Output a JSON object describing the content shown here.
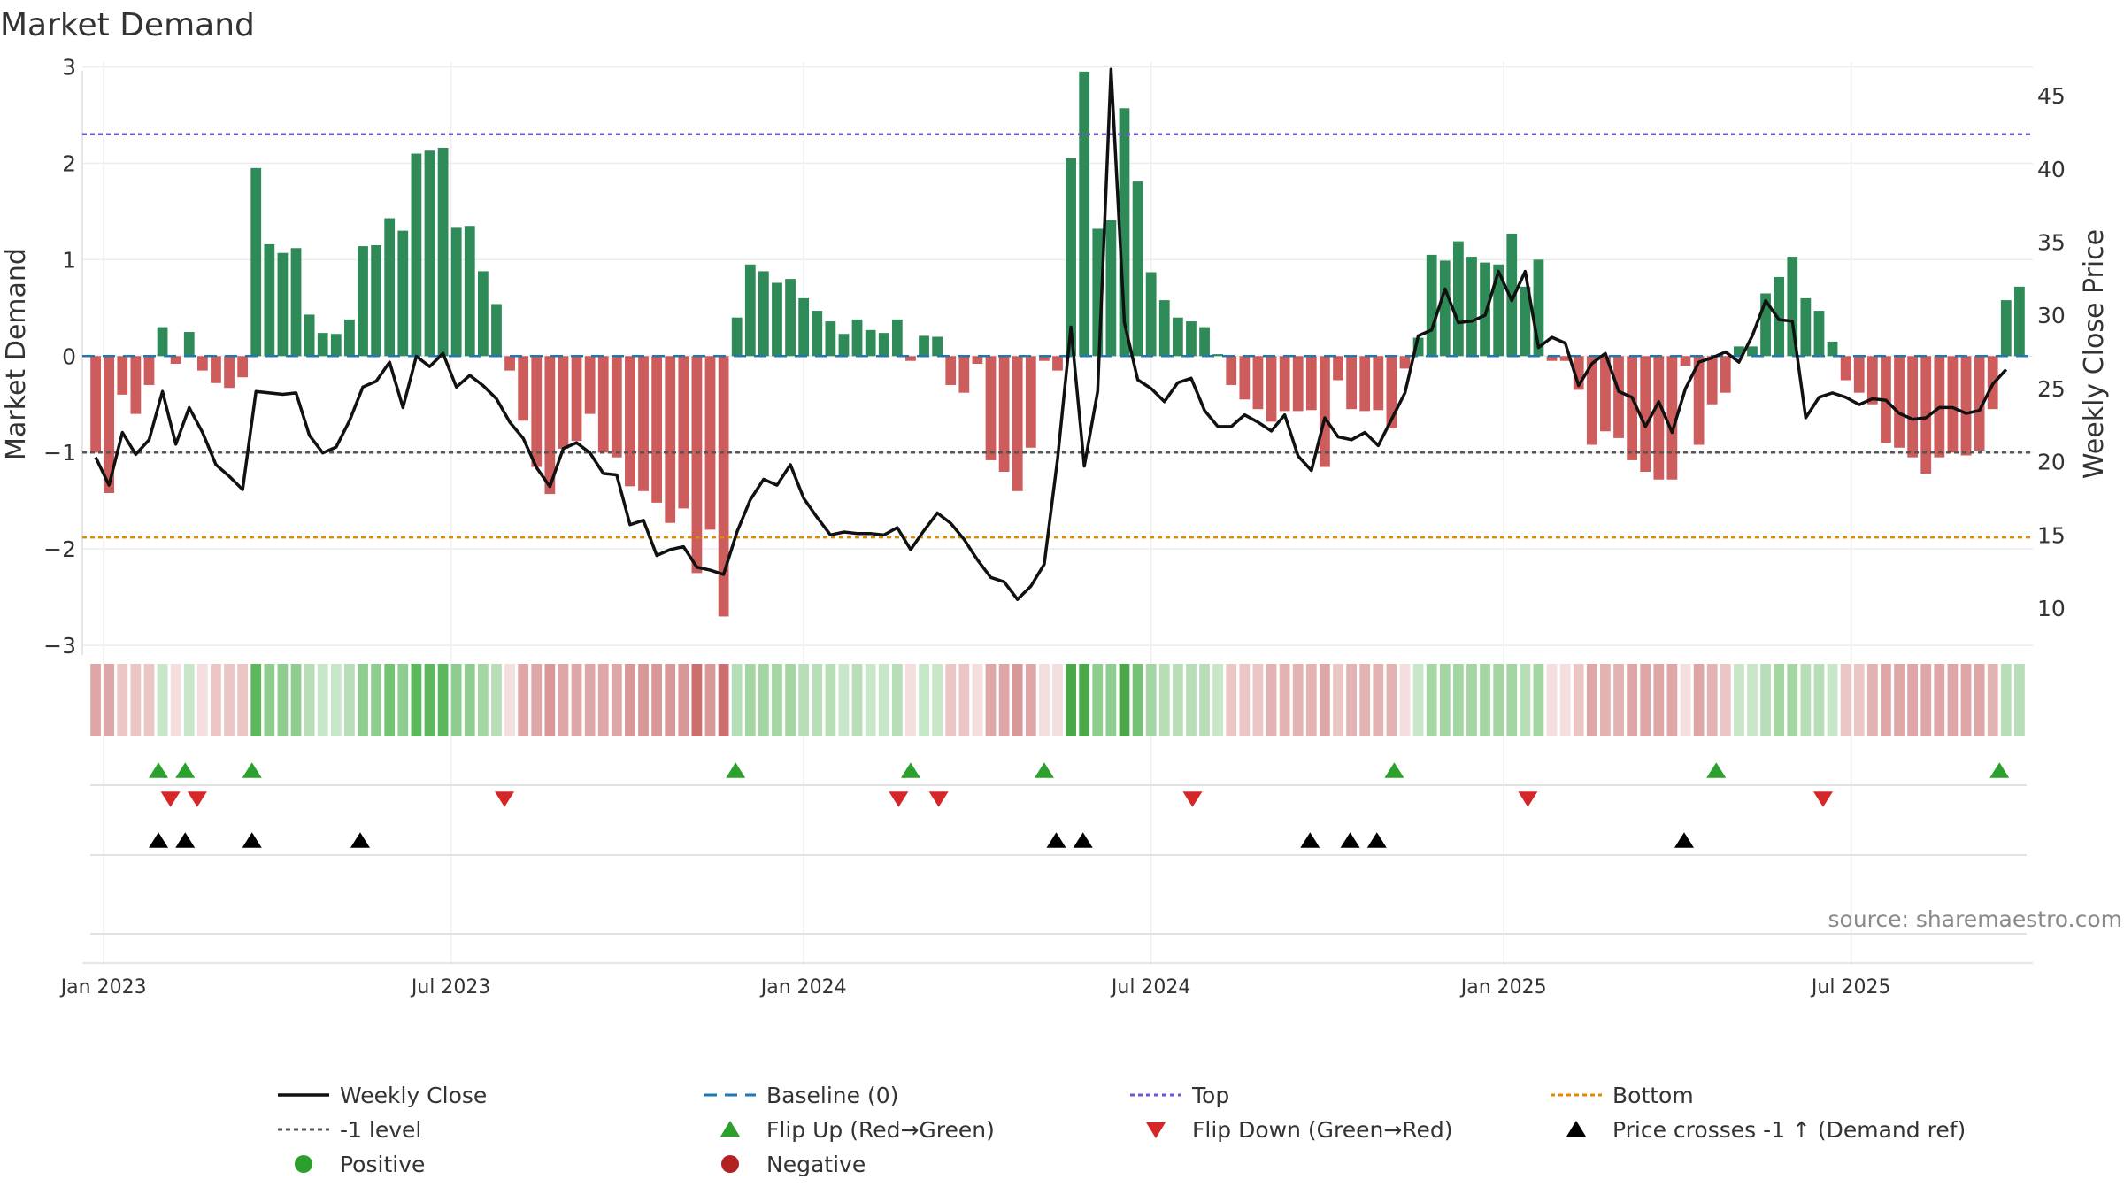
{
  "chart_data": {
    "type": "bar",
    "title": "Market Demand",
    "ylabel_left": "Market Demand",
    "ylabel_right": "Weekly Close Price",
    "source": "source: sharemaestro.com",
    "ylim_left": [
      -3.1,
      3.05
    ],
    "ylim_right": [
      6.8,
      47.3
    ],
    "y_ticks_left": [
      3,
      2,
      1,
      0,
      -1,
      -2,
      -3
    ],
    "y_tick_labels_left": [
      "3",
      "2",
      "1",
      "0",
      "−1",
      "−2",
      "−3"
    ],
    "y_ticks_right": [
      45,
      40,
      35,
      30,
      25,
      20,
      15,
      10
    ],
    "y_tick_labels_right": [
      "45",
      "40",
      "35",
      "30",
      "25",
      "20",
      "15",
      "10"
    ],
    "week_range": [
      -1,
      145
    ],
    "date_ticks": [
      {
        "label": "Jan 2023",
        "week": 0.6
      },
      {
        "label": "Jul 2023",
        "week": 26.6
      },
      {
        "label": "Jan 2024",
        "week": 53
      },
      {
        "label": "Jul 2024",
        "week": 79
      },
      {
        "label": "Jan 2025",
        "week": 105.4
      },
      {
        "label": "Jul 2025",
        "week": 131.4
      }
    ],
    "reference_lines": {
      "baseline": {
        "value": 0,
        "label": "Baseline (0)",
        "color": "#1f77b4"
      },
      "top": {
        "value": 2.3,
        "label": "Top",
        "color": "#6a5acd"
      },
      "bottom": {
        "value": -1.88,
        "label": "Bottom",
        "color": "#e08a00"
      },
      "minus_one": {
        "value": -1,
        "label": "-1 level",
        "color": "#555555"
      }
    },
    "colors": {
      "positive": "#2e8b57",
      "negative": "#cd5c5c",
      "price": "#111111",
      "flip_up": "#2ca02c",
      "flip_down": "#d62728",
      "cross": "#000000",
      "positive_dot": "#2ca02c",
      "negative_dot": "#b22222"
    },
    "demand": [
      -1.0,
      -1.42,
      -0.4,
      -0.6,
      -0.3,
      0.3,
      -0.08,
      0.25,
      -0.15,
      -0.28,
      -0.33,
      -0.22,
      1.95,
      1.16,
      1.07,
      1.12,
      0.43,
      0.24,
      0.23,
      0.38,
      1.14,
      1.15,
      1.43,
      1.3,
      2.1,
      2.13,
      2.16,
      1.33,
      1.35,
      0.88,
      0.54,
      -0.15,
      -0.67,
      -1.15,
      -1.43,
      -0.96,
      -0.88,
      -0.6,
      -1.0,
      -1.05,
      -1.35,
      -1.4,
      -1.52,
      -1.73,
      -1.58,
      -2.25,
      -1.8,
      -2.7,
      0.4,
      0.95,
      0.88,
      0.76,
      0.8,
      0.6,
      0.47,
      0.36,
      0.23,
      0.38,
      0.27,
      0.24,
      0.38,
      -0.05,
      0.21,
      0.2,
      -0.3,
      -0.38,
      -0.08,
      -1.08,
      -1.2,
      -1.4,
      -0.95,
      -0.05,
      -0.15,
      2.05,
      2.95,
      1.32,
      1.41,
      2.57,
      1.81,
      0.87,
      0.58,
      0.4,
      0.36,
      0.3,
      0.02,
      -0.3,
      -0.45,
      -0.55,
      -0.68,
      -0.57,
      -0.57,
      -0.56,
      -1.15,
      -0.25,
      -0.55,
      -0.57,
      -0.56,
      -0.75,
      -0.13,
      0.19,
      1.05,
      0.99,
      1.19,
      1.03,
      0.97,
      0.95,
      1.27,
      0.72,
      1.0,
      -0.05,
      -0.05,
      -0.35,
      -0.92,
      -0.78,
      -0.85,
      -1.08,
      -1.2,
      -1.28,
      -1.28,
      -0.1,
      -0.92,
      -0.5,
      -0.38,
      0.1,
      0.1,
      0.65,
      0.82,
      1.03,
      0.6,
      0.47,
      0.15,
      -0.25,
      -0.38,
      -0.5,
      -0.9,
      -0.95,
      -1.05,
      -1.22,
      -1.05,
      -1.0,
      -1.03,
      -0.98,
      -0.55,
      0.58,
      0.72
    ],
    "weekly_close": [
      20.3,
      18.4,
      22.0,
      20.5,
      21.5,
      24.8,
      21.2,
      23.7,
      22.0,
      19.8,
      19.0,
      18.1,
      24.8,
      24.7,
      24.6,
      24.7,
      21.8,
      20.6,
      21.0,
      22.8,
      25.1,
      25.5,
      26.8,
      23.7,
      27.2,
      26.5,
      27.4,
      25.1,
      25.9,
      25.2,
      24.3,
      22.7,
      21.6,
      19.6,
      18.3,
      20.9,
      21.3,
      20.6,
      19.2,
      19.1,
      15.7,
      16.0,
      13.6,
      14.0,
      14.2,
      12.8,
      12.6,
      12.3,
      15.2,
      17.4,
      18.8,
      18.4,
      19.8,
      17.5,
      16.2,
      15.0,
      15.2,
      15.1,
      15.1,
      15.0,
      15.5,
      14.0,
      15.3,
      16.5,
      15.8,
      14.7,
      13.3,
      12.1,
      11.8,
      10.6,
      11.5,
      13.0,
      20.2,
      29.2,
      19.7,
      24.8,
      46.8,
      29.5,
      25.6,
      25.0,
      24.1,
      25.4,
      25.7,
      23.5,
      22.4,
      22.4,
      23.2,
      22.7,
      22.1,
      23.2,
      20.4,
      19.4,
      23.0,
      21.7,
      21.5,
      22.0,
      21.1,
      22.9,
      24.7,
      28.6,
      29.0,
      31.8,
      29.5,
      29.6,
      30.0,
      33.0,
      31.0,
      33.0,
      27.8,
      28.5,
      28.1,
      25.2,
      26.7,
      27.4,
      24.8,
      24.4,
      22.4,
      24.1,
      22.0,
      25.0,
      26.8,
      27.1,
      27.5,
      26.8,
      28.6,
      31.0,
      29.7,
      29.6,
      23.0,
      24.4,
      24.7,
      24.4,
      23.9,
      24.3,
      24.2,
      23.3,
      22.9,
      23.0,
      23.7,
      23.7,
      23.3,
      23.5,
      25.3,
      26.3
    ],
    "demand_strip_colors": [
      "#dea6a6",
      "#dea6a6",
      "#ecc5c5",
      "#ecc5c5",
      "#ecc5c5",
      "#c8e6c8",
      "#f4dede",
      "#c8e6c8",
      "#f4dede",
      "#ecc5c5",
      "#ecc5c5",
      "#ecc5c5",
      "#5cb85c",
      "#8fcc8f",
      "#8fcc8f",
      "#8fcc8f",
      "#b7deb7",
      "#c8e6c8",
      "#c8e6c8",
      "#b7deb7",
      "#8fcc8f",
      "#8fcc8f",
      "#74c274",
      "#8fcc8f",
      "#5cb85c",
      "#5cb85c",
      "#5cb85c",
      "#8fcc8f",
      "#8fcc8f",
      "#a3d6a3",
      "#b7deb7",
      "#f4dede",
      "#dea6a6",
      "#dea6a6",
      "#d99898",
      "#dea6a6",
      "#dea6a6",
      "#dea6a6",
      "#dea6a6",
      "#dea6a6",
      "#d99898",
      "#d99898",
      "#d99898",
      "#d99898",
      "#d99898",
      "#cd6e6e",
      "#d99898",
      "#cd6e6e",
      "#b7deb7",
      "#a3d6a3",
      "#a3d6a3",
      "#a3d6a3",
      "#a3d6a3",
      "#b7deb7",
      "#b7deb7",
      "#b7deb7",
      "#c8e6c8",
      "#b7deb7",
      "#c8e6c8",
      "#c8e6c8",
      "#b7deb7",
      "#f4dede",
      "#c8e6c8",
      "#c8e6c8",
      "#ecc5c5",
      "#ecc5c5",
      "#f4dede",
      "#dea6a6",
      "#dea6a6",
      "#d99898",
      "#dea6a6",
      "#f4dede",
      "#f4dede",
      "#4aa84a",
      "#4aa84a",
      "#8fcc8f",
      "#8fcc8f",
      "#4aa84a",
      "#74c274",
      "#a3d6a3",
      "#b7deb7",
      "#b7deb7",
      "#b7deb7",
      "#b7deb7",
      "#c8e6c8",
      "#ecc5c5",
      "#ecc5c5",
      "#ecc5c5",
      "#e3b2b2",
      "#e3b2b2",
      "#e3b2b2",
      "#e3b2b2",
      "#dea6a6",
      "#ecc5c5",
      "#e3b2b2",
      "#e3b2b2",
      "#e3b2b2",
      "#e3b2b2",
      "#f4dede",
      "#c8e6c8",
      "#a3d6a3",
      "#a3d6a3",
      "#a3d6a3",
      "#a3d6a3",
      "#a3d6a3",
      "#a3d6a3",
      "#a3d6a3",
      "#b7deb7",
      "#a3d6a3",
      "#f4dede",
      "#f4dede",
      "#ecc5c5",
      "#dea6a6",
      "#e3b2b2",
      "#e3b2b2",
      "#dea6a6",
      "#dea6a6",
      "#dea6a6",
      "#dea6a6",
      "#f4dede",
      "#dea6a6",
      "#e3b2b2",
      "#ecc5c5",
      "#c8e6c8",
      "#c8e6c8",
      "#b7deb7",
      "#a3d6a3",
      "#a3d6a3",
      "#b7deb7",
      "#b7deb7",
      "#c8e6c8",
      "#ecc5c5",
      "#ecc5c5",
      "#e3b2b2",
      "#dea6a6",
      "#dea6a6",
      "#dea6a6",
      "#dea6a6",
      "#dea6a6",
      "#dea6a6",
      "#dea6a6",
      "#dea6a6",
      "#e3b2b2",
      "#b7deb7",
      "#b7deb7"
    ],
    "flip_up_weeks": [
      4.7,
      6.7,
      11.7,
      47.9,
      61,
      71,
      97.2,
      121.3,
      142.5
    ],
    "flip_down_weeks": [
      5.6,
      7.6,
      30.6,
      60.1,
      63.1,
      82.1,
      107.2,
      129.3
    ],
    "price_cross_weeks": [
      4.7,
      6.7,
      11.7,
      19.8,
      71.9,
      73.9,
      90.9,
      93.9,
      95.9,
      118.9
    ],
    "legend": [
      {
        "label": "Weekly Close",
        "marker": "solid-line",
        "color": "#111111"
      },
      {
        "label": "Baseline (0)",
        "marker": "dashed-line",
        "color": "#1f77b4"
      },
      {
        "label": "Top",
        "marker": "dotted-line",
        "color": "#6a5acd"
      },
      {
        "label": "Bottom",
        "marker": "dotted-line",
        "color": "#e08a00"
      },
      {
        "label": "-1 level",
        "marker": "dotted-line",
        "color": "#555555"
      },
      {
        "label": "Flip Up (Red→Green)",
        "marker": "triangle-up",
        "color": "#2ca02c"
      },
      {
        "label": "Flip Down (Green→Red)",
        "marker": "triangle-down",
        "color": "#d62728"
      },
      {
        "label": "Price crosses -1 ↑ (Demand ref)",
        "marker": "triangle-up",
        "color": "#000000"
      },
      {
        "label": "Positive",
        "marker": "circle",
        "color": "#2ca02c"
      },
      {
        "label": "Negative",
        "marker": "circle",
        "color": "#b22222"
      }
    ]
  }
}
